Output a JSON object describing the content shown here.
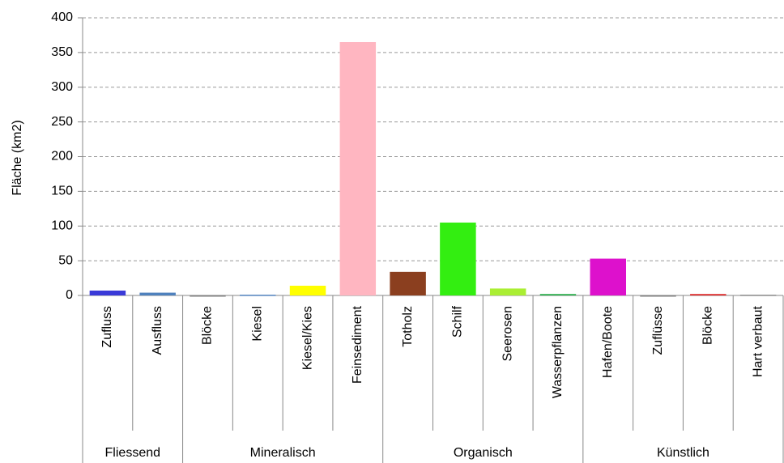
{
  "chart_data": {
    "type": "bar",
    "y_label": "Fläche (km2)",
    "ylim": [
      0,
      400
    ],
    "yticks": [
      0,
      50,
      100,
      150,
      200,
      250,
      300,
      350,
      400
    ],
    "grid": true,
    "groups": [
      {
        "name": "Fliessend",
        "categories": [
          "Zufluss",
          "Ausfluss"
        ],
        "values": [
          7,
          4
        ],
        "colors": [
          "#3a3ad8",
          "#4f81bd"
        ]
      },
      {
        "name": "Mineralisch",
        "categories": [
          "Blöcke",
          "Kiesel",
          "Kiesel/Kies",
          "Feinsediment"
        ],
        "values": [
          0,
          1,
          14,
          365
        ],
        "colors": [
          "#808080",
          "#4f81bd",
          "#ffff00",
          "#ffb6c1"
        ]
      },
      {
        "name": "Organisch",
        "categories": [
          "Totholz",
          "Schilf",
          "Seerosen",
          "Wasserpflanzen"
        ],
        "values": [
          34,
          105,
          10,
          2
        ],
        "colors": [
          "#8b3f1f",
          "#33ee11",
          "#aaee33",
          "#22aa44"
        ]
      },
      {
        "name": "Künstlich",
        "categories": [
          "Hafen/Boote",
          "Zuflüsse",
          "Blöcke",
          "Hart verbaut"
        ],
        "values": [
          53,
          0,
          2,
          1
        ],
        "colors": [
          "#dd11cc",
          "#808080",
          "#dd2222",
          "#888888"
        ]
      }
    ]
  }
}
